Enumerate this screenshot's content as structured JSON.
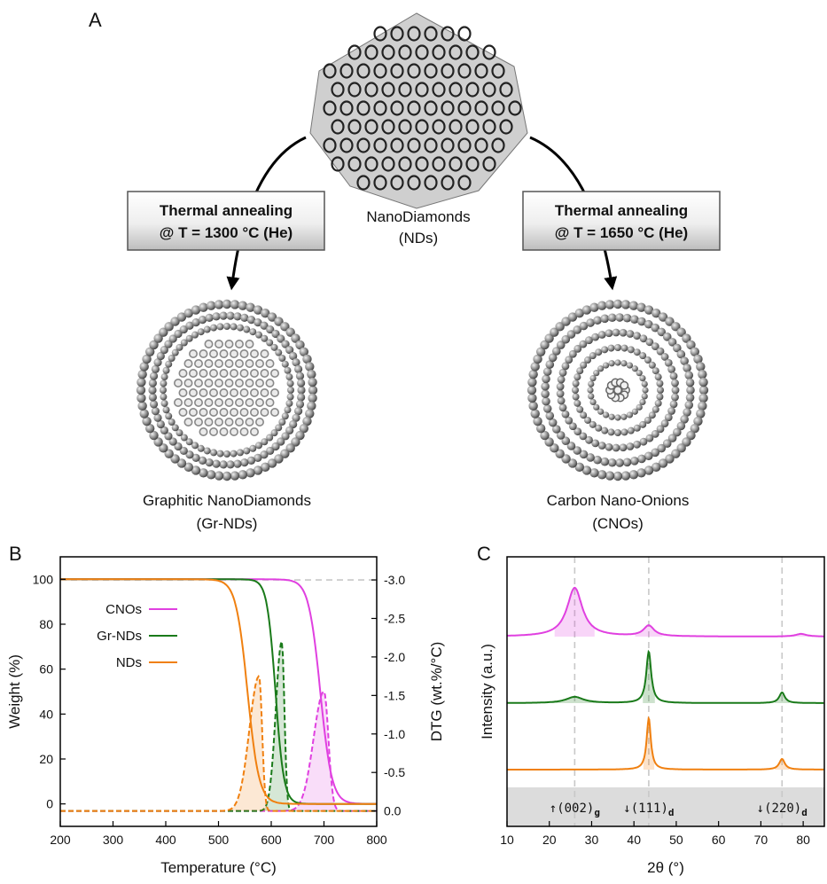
{
  "panel_a": {
    "letter": "A",
    "top_label": [
      "NanoDiamonds",
      "(NDs)"
    ],
    "left_box": [
      "Thermal annealing",
      "@ T = 1300 °C (He)"
    ],
    "right_box": [
      "Thermal annealing",
      "@ T = 1650 °C (He)"
    ],
    "left_caption": [
      "Graphitic NanoDiamonds",
      "(Gr-NDs)"
    ],
    "right_caption": [
      "Carbon Nano-Onions",
      "(CNOs)"
    ]
  },
  "colors": {
    "CNOs": "#e040e0",
    "Gr-NDs": "#1a7a1a",
    "NDs": "#f08010"
  },
  "chart_data": [
    {
      "panel": "B",
      "type": "line",
      "xlabel": "Temperature (°C)",
      "ylabel": "Weight (%)",
      "y2label": "DTG (wt.%/°C)",
      "xlim": [
        200,
        800
      ],
      "ylim": [
        -10,
        110
      ],
      "y2lim": [
        0.2,
        -3.3
      ],
      "xticks": [
        200,
        300,
        400,
        500,
        600,
        700,
        800
      ],
      "yticks": [
        0,
        20,
        40,
        60,
        80,
        100
      ],
      "y2ticks": [
        0.0,
        -0.5,
        -1.0,
        -1.5,
        -2.0,
        -2.5,
        -3.0
      ],
      "legend": {
        "placement": "left",
        "entries": [
          "CNOs",
          "Gr-NDs",
          "NDs"
        ]
      },
      "weight_series": [
        {
          "name": "CNOs",
          "midpoint": 693,
          "width": 11
        },
        {
          "name": "Gr-NDs",
          "midpoint": 608,
          "width": 8
        },
        {
          "name": "NDs",
          "midpoint": 555,
          "width": 11
        }
      ],
      "dtg_series": [
        {
          "name": "CNOs",
          "peak": 700,
          "value": -1.55,
          "rise": 28,
          "fall": 12
        },
        {
          "name": "Gr-NDs",
          "peak": 620,
          "value": -2.2,
          "rise": 16,
          "fall": 7
        },
        {
          "name": "NDs",
          "peak": 577,
          "value": -1.75,
          "rise": 26,
          "fall": 8
        }
      ],
      "reference_line": {
        "y2": -3.0,
        "style": "dashed"
      }
    },
    {
      "panel": "C",
      "type": "line",
      "xlabel": "2θ (°)",
      "ylabel": "Intensity (a.u.)",
      "xlim": [
        10,
        85
      ],
      "xticks": [
        10,
        20,
        30,
        40,
        50,
        60,
        70,
        80
      ],
      "reference_lines": [
        26,
        43.5,
        75
      ],
      "peak_labels": [
        {
          "text": "↑(002)",
          "sub": "g",
          "x": 26
        },
        {
          "text": "↓(111)",
          "sub": "d",
          "x": 43.5
        },
        {
          "text": "↓(220)",
          "sub": "d",
          "x": 75
        }
      ],
      "series": [
        {
          "name": "CNOs",
          "peaks": [
            {
              "x": 26,
              "h": 55,
              "w": 2.2
            },
            {
              "x": 43.5,
              "h": 12,
              "w": 1.5
            },
            {
              "x": 79.5,
              "h": 3,
              "w": 1.5
            }
          ]
        },
        {
          "name": "Gr-NDs",
          "peaks": [
            {
              "x": 26,
              "h": 7,
              "w": 2.5
            },
            {
              "x": 43.5,
              "h": 58,
              "w": 0.7
            },
            {
              "x": 75,
              "h": 12,
              "w": 0.8
            }
          ]
        },
        {
          "name": "NDs",
          "peaks": [
            {
              "x": 43.5,
              "h": 58,
              "w": 0.6
            },
            {
              "x": 75,
              "h": 12,
              "w": 0.8
            }
          ]
        }
      ]
    }
  ]
}
